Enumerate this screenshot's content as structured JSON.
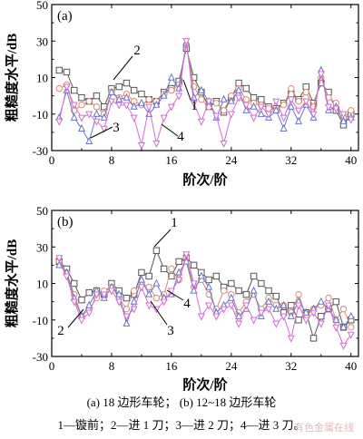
{
  "chart_data": [
    {
      "type": "line",
      "panel_label": "(a)",
      "xlabel": "阶次/阶",
      "ylabel": "粗糙度水平/dB",
      "xlim": [
        0,
        41
      ],
      "ylim": [
        -30,
        50
      ],
      "xticks": [
        0,
        8,
        16,
        24,
        32,
        40
      ],
      "yticks": [
        -30,
        -10,
        10,
        30,
        50
      ],
      "grid": false,
      "series": [
        {
          "name": "1",
          "color": "#555555",
          "marker": "square",
          "x": [
            1,
            2,
            3,
            4,
            5,
            6,
            7,
            8,
            9,
            10,
            11,
            12,
            13,
            14,
            15,
            16,
            17,
            18,
            19,
            20,
            21,
            22,
            23,
            24,
            25,
            26,
            27,
            28,
            29,
            30,
            31,
            32,
            33,
            34,
            35,
            36,
            37,
            38,
            39,
            40
          ],
          "values": [
            14,
            13,
            3,
            -1,
            -3,
            0,
            -6,
            4,
            5,
            7,
            3,
            1,
            -2,
            -3,
            2,
            4,
            8,
            26,
            10,
            2,
            -6,
            -3,
            -9,
            -1,
            7,
            4,
            -1,
            -2,
            -6,
            -7,
            -4,
            1,
            -2,
            5,
            -4,
            7,
            2,
            -8,
            -16,
            -10
          ]
        },
        {
          "name": "2",
          "color": "#d98a72",
          "marker": "circle",
          "x": [
            1,
            2,
            3,
            4,
            5,
            6,
            7,
            8,
            9,
            10,
            11,
            12,
            13,
            14,
            15,
            16,
            17,
            18,
            19,
            20,
            21,
            22,
            23,
            24,
            25,
            26,
            27,
            28,
            29,
            30,
            31,
            32,
            33,
            34,
            35,
            36,
            37,
            38,
            39,
            40
          ],
          "values": [
            4,
            6,
            -8,
            -5,
            -3,
            -6,
            -10,
            2,
            -1,
            1,
            -3,
            -5,
            -2,
            -3,
            1,
            3,
            6,
            28,
            5,
            -2,
            -6,
            -4,
            -8,
            0,
            4,
            -2,
            -4,
            -5,
            -7,
            -8,
            -5,
            4,
            -3,
            2,
            -6,
            10,
            -1,
            -4,
            -12,
            -8
          ]
        },
        {
          "name": "3",
          "color": "#6a74c6",
          "marker": "triangle-up",
          "x": [
            1,
            2,
            3,
            4,
            5,
            6,
            7,
            8,
            9,
            10,
            11,
            12,
            13,
            14,
            15,
            16,
            17,
            18,
            19,
            20,
            21,
            22,
            23,
            24,
            25,
            26,
            27,
            28,
            29,
            30,
            31,
            32,
            33,
            34,
            35,
            36,
            37,
            38,
            39,
            40
          ],
          "values": [
            -12,
            3,
            -12,
            -18,
            -25,
            -10,
            -12,
            2,
            -2,
            -1,
            -6,
            -4,
            -10,
            -5,
            0,
            10,
            4,
            29,
            -1,
            3,
            -3,
            -12,
            -2,
            -3,
            3,
            -8,
            -6,
            -10,
            -12,
            -8,
            -18,
            -6,
            -14,
            -5,
            -12,
            14,
            -8,
            -6,
            -14,
            -12
          ]
        },
        {
          "name": "4",
          "color": "#d46ad6",
          "marker": "triangle-down",
          "x": [
            1,
            2,
            3,
            4,
            5,
            6,
            7,
            8,
            9,
            10,
            11,
            12,
            13,
            14,
            15,
            16,
            17,
            18,
            19,
            20,
            21,
            22,
            23,
            24,
            25,
            26,
            27,
            28,
            29,
            30,
            31,
            32,
            33,
            34,
            35,
            36,
            37,
            38,
            39,
            40
          ],
          "values": [
            -14,
            5,
            -5,
            -12,
            -10,
            -14,
            -18,
            -3,
            -5,
            -5,
            -12,
            -27,
            -6,
            -26,
            -12,
            -6,
            0,
            30,
            -4,
            -14,
            -3,
            -11,
            -26,
            -10,
            -1,
            -5,
            -12,
            -6,
            -10,
            -3,
            -12,
            -2,
            -8,
            -3,
            -10,
            12,
            -6,
            -7,
            -10,
            -13
          ]
        }
      ],
      "annotations": [
        "1",
        "2",
        "3",
        "4"
      ]
    },
    {
      "type": "line",
      "panel_label": "(b)",
      "xlabel": "阶次/阶",
      "ylabel": "粗糙度水平/dB",
      "xlim": [
        0,
        41
      ],
      "ylim": [
        -30,
        50
      ],
      "xticks": [
        0,
        8,
        16,
        24,
        32,
        40
      ],
      "yticks": [
        -30,
        -10,
        10,
        30,
        50
      ],
      "grid": false,
      "series": [
        {
          "name": "1",
          "color": "#555555",
          "marker": "square",
          "x": [
            1,
            2,
            3,
            4,
            5,
            6,
            7,
            8,
            9,
            10,
            11,
            12,
            13,
            14,
            15,
            16,
            17,
            18,
            19,
            20,
            21,
            22,
            23,
            24,
            25,
            26,
            27,
            28,
            29,
            30,
            31,
            32,
            33,
            34,
            35,
            36,
            37,
            38,
            39,
            40
          ],
          "values": [
            22,
            18,
            10,
            1,
            5,
            6,
            4,
            10,
            6,
            2,
            4,
            16,
            14,
            28,
            18,
            14,
            22,
            24,
            20,
            16,
            12,
            14,
            8,
            10,
            6,
            4,
            14,
            10,
            6,
            3,
            -6,
            -2,
            -10,
            -6,
            -20,
            -8,
            -4,
            0,
            -14,
            -10
          ]
        },
        {
          "name": "2",
          "color": "#d98a72",
          "marker": "circle",
          "x": [
            1,
            2,
            3,
            4,
            5,
            6,
            7,
            8,
            9,
            10,
            11,
            12,
            13,
            14,
            15,
            16,
            17,
            18,
            19,
            20,
            21,
            22,
            23,
            24,
            25,
            26,
            27,
            28,
            29,
            30,
            31,
            32,
            33,
            34,
            35,
            36,
            37,
            38,
            39,
            40
          ],
          "values": [
            22,
            16,
            4,
            -8,
            -4,
            2,
            6,
            8,
            2,
            -4,
            6,
            10,
            8,
            2,
            4,
            18,
            12,
            24,
            8,
            12,
            4,
            -4,
            6,
            4,
            -6,
            0,
            4,
            -4,
            2,
            -2,
            -2,
            -6,
            4,
            -8,
            -4,
            -2,
            2,
            -10,
            -4,
            -14
          ]
        },
        {
          "name": "3",
          "color": "#6a74c6",
          "marker": "triangle-up",
          "x": [
            1,
            2,
            3,
            4,
            5,
            6,
            7,
            8,
            9,
            10,
            11,
            12,
            13,
            14,
            15,
            16,
            17,
            18,
            19,
            20,
            21,
            22,
            23,
            24,
            25,
            26,
            27,
            28,
            29,
            30,
            31,
            32,
            33,
            34,
            35,
            36,
            37,
            38,
            39,
            40
          ],
          "values": [
            20,
            16,
            2,
            -8,
            -2,
            6,
            2,
            8,
            4,
            -12,
            0,
            12,
            4,
            10,
            2,
            4,
            16,
            22,
            6,
            14,
            8,
            -6,
            -2,
            2,
            -8,
            -4,
            6,
            -8,
            0,
            -4,
            -2,
            -8,
            0,
            -6,
            -4,
            0,
            -4,
            -10,
            -14,
            -8
          ]
        },
        {
          "name": "4",
          "color": "#d46ad6",
          "marker": "triangle-down",
          "x": [
            1,
            2,
            3,
            4,
            5,
            6,
            7,
            8,
            9,
            10,
            11,
            12,
            13,
            14,
            15,
            16,
            17,
            18,
            19,
            20,
            21,
            22,
            23,
            24,
            25,
            26,
            27,
            28,
            29,
            30,
            31,
            32,
            33,
            34,
            35,
            36,
            37,
            38,
            39,
            40
          ],
          "values": [
            24,
            14,
            0,
            -10,
            -6,
            4,
            4,
            6,
            0,
            -8,
            -4,
            8,
            -2,
            -4,
            0,
            6,
            12,
            26,
            10,
            -8,
            -2,
            -8,
            -4,
            -2,
            -12,
            -2,
            -10,
            -6,
            -4,
            -12,
            -8,
            -20,
            -2,
            -10,
            -6,
            -12,
            -2,
            -14,
            -24,
            -18
          ]
        }
      ],
      "annotations": [
        "1",
        "2",
        "3",
        "4"
      ]
    }
  ],
  "captions": {
    "line1": "(a) 18 边形车轮； (b) 12~18 边形车轮",
    "line2": "1—镟前；2—进 1 刀；3—进 2 刀；4—进 3 刀。"
  },
  "watermark": "有色金属在线"
}
